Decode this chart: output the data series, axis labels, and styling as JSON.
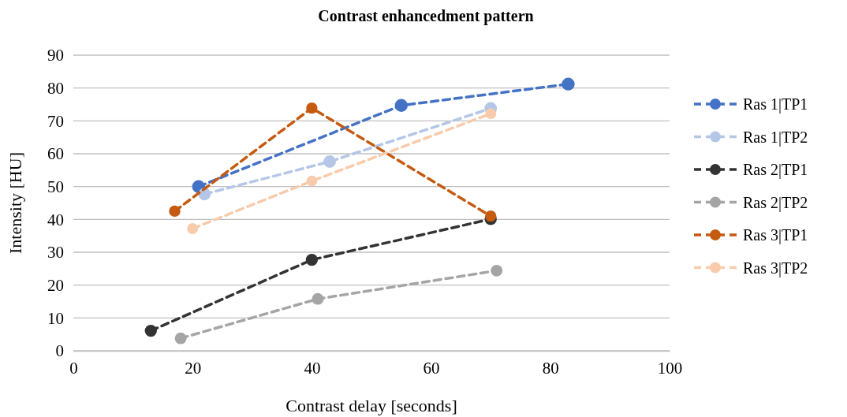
{
  "chart_data": {
    "type": "line",
    "title": "Contrast enhancedment pattern",
    "xlabel": "Contrast delay [seconds]",
    "ylabel": "Intensity [HU]",
    "xlim": [
      0,
      100
    ],
    "xticks": [
      0,
      20,
      40,
      60,
      80,
      100
    ],
    "ylim": [
      0,
      90
    ],
    "yticks": [
      0,
      10,
      20,
      30,
      40,
      50,
      60,
      70,
      80,
      90
    ],
    "grid": "y",
    "legend": "right",
    "marker": "circle",
    "line_style": "dashed",
    "series": [
      {
        "name": "Ras 1|TP1",
        "color": "#4472c4",
        "x": [
          21,
          55,
          83
        ],
        "values": [
          50,
          74.7,
          81.2
        ]
      },
      {
        "name": "Ras 1|TP2",
        "color": "#b4c7e7",
        "x": [
          22,
          43,
          70
        ],
        "values": [
          47.7,
          57.6,
          73.8
        ]
      },
      {
        "name": "Ras 2|TP1",
        "color": "#333333",
        "x": [
          13,
          40,
          70
        ],
        "values": [
          6.1,
          27.7,
          40.1
        ]
      },
      {
        "name": "Ras 2|TP2",
        "color": "#a5a5a5",
        "x": [
          18,
          41,
          71
        ],
        "values": [
          3.8,
          15.8,
          24.4
        ]
      },
      {
        "name": "Ras 3|TP1",
        "color": "#c55a11",
        "x": [
          17,
          40,
          70
        ],
        "values": [
          42.5,
          73.9,
          41
        ]
      },
      {
        "name": "Ras 3|TP2",
        "color": "#f8cbad",
        "x": [
          20,
          40,
          70
        ],
        "values": [
          37.2,
          51.7,
          72.2
        ]
      }
    ]
  }
}
